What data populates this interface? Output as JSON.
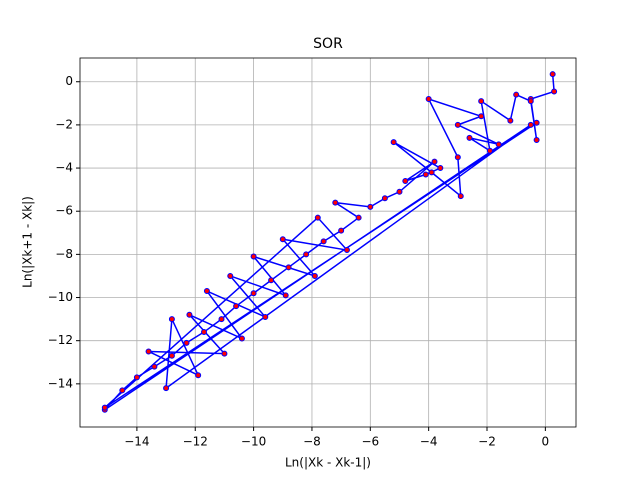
{
  "chart_data": {
    "type": "line",
    "title": "SOR",
    "x_label": "Ln(|Xk - Xk-1|)",
    "y_label": "Ln(|Xk+1 - Xk|)",
    "x": [
      0.25,
      0.3,
      -0.5,
      -0.3,
      -0.5,
      -1.0,
      -1.2,
      -2.2,
      -1.9,
      -2.6,
      -1.6,
      -3.0,
      -2.2,
      -4.0,
      -3.0,
      -2.9,
      -3.9,
      -5.2,
      -3.6,
      -4.1,
      -4.8,
      -3.8,
      -5.0,
      -5.5,
      -6.0,
      -7.2,
      -6.4,
      -7.0,
      -7.6,
      -8.2,
      -8.8,
      -9.4,
      -10.0,
      -10.6,
      -11.1,
      -11.7,
      -12.3,
      -12.8,
      -13.4,
      -14.0,
      -14.5,
      -15.1,
      -0.5,
      -13.0,
      -12.8,
      -11.9,
      -13.6,
      -11.0,
      -12.2,
      -10.4,
      -11.6,
      -9.6,
      -10.8,
      -8.9,
      -10.0,
      -7.9,
      -9.0,
      -6.8,
      -7.8,
      -15.1,
      -0.3
    ],
    "series": [
      {
        "color": "#0000ff",
        "marker_color": "#ff0000",
        "values": [
          0.35,
          -0.45,
          -0.8,
          -2.7,
          -0.9,
          -0.6,
          -1.8,
          -0.9,
          -3.2,
          -2.6,
          -2.9,
          -2.0,
          -1.6,
          -0.8,
          -3.5,
          -5.3,
          -4.2,
          -2.8,
          -4.0,
          -4.3,
          -4.6,
          -3.7,
          -5.1,
          -5.4,
          -5.8,
          -5.6,
          -6.3,
          -6.9,
          -7.4,
          -8.0,
          -8.6,
          -9.2,
          -9.8,
          -10.4,
          -11.0,
          -11.6,
          -12.1,
          -12.7,
          -13.2,
          -13.7,
          -14.3,
          -15.2,
          -2.0,
          -14.2,
          -11.0,
          -13.6,
          -12.5,
          -12.6,
          -10.8,
          -11.9,
          -9.7,
          -10.9,
          -9.0,
          -9.9,
          -8.1,
          -9.0,
          -7.3,
          -7.8,
          -6.3,
          -15.1,
          -1.9
        ]
      }
    ],
    "xlim": [
      -15.95,
      1.05
    ],
    "ylim": [
      -16.0,
      1.1
    ],
    "xticks": [
      {
        "value": -14,
        "label": "−14"
      },
      {
        "value": -12,
        "label": "−12"
      },
      {
        "value": -10,
        "label": "−10"
      },
      {
        "value": -8,
        "label": "−8"
      },
      {
        "value": -6,
        "label": "−6"
      },
      {
        "value": -4,
        "label": "−4"
      },
      {
        "value": -2,
        "label": "−2"
      },
      0
    ],
    "yticks": [
      {
        "value": -14,
        "label": "−14"
      },
      {
        "value": -12,
        "label": "−12"
      },
      {
        "value": -10,
        "label": "−10"
      },
      {
        "value": -8,
        "label": "−8"
      },
      {
        "value": -6,
        "label": "−6"
      },
      {
        "value": -4,
        "label": "−4"
      },
      {
        "value": -2,
        "label": "−2"
      },
      0
    ],
    "grid": true
  }
}
